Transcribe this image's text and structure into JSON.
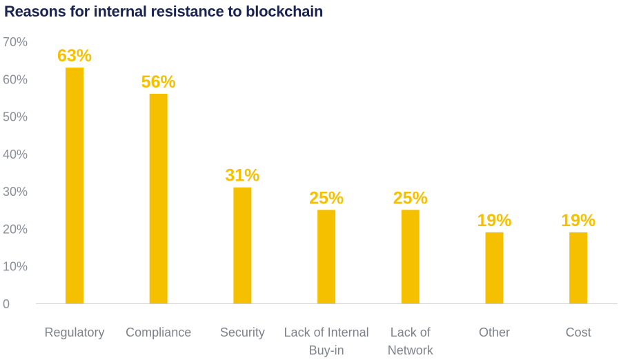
{
  "chart_data": {
    "type": "bar",
    "title": "Reasons for internal resistance to blockchain",
    "categories": [
      [
        "Regulatory"
      ],
      [
        "Compliance"
      ],
      [
        "Security"
      ],
      [
        "Lack of Internal",
        "Buy-in"
      ],
      [
        "Lack of",
        "Network"
      ],
      [
        "Other"
      ],
      [
        "Cost"
      ]
    ],
    "values": [
      63,
      56,
      31,
      25,
      25,
      19,
      19
    ],
    "data_labels": [
      "63%",
      "56%",
      "31%",
      "25%",
      "25%",
      "19%",
      "19%"
    ],
    "y_ticks": [
      0,
      10,
      20,
      30,
      40,
      50,
      60,
      70
    ],
    "y_tick_labels": [
      "0",
      "10%",
      "20%",
      "30%",
      "40%",
      "50%",
      "60%",
      "70%"
    ],
    "ylim": [
      0,
      70
    ],
    "xlabel": "",
    "ylabel": "",
    "grid": false,
    "bar_color": "#f5c000",
    "label_color": "#f5c000",
    "axis_color": "#d0d0d0"
  }
}
